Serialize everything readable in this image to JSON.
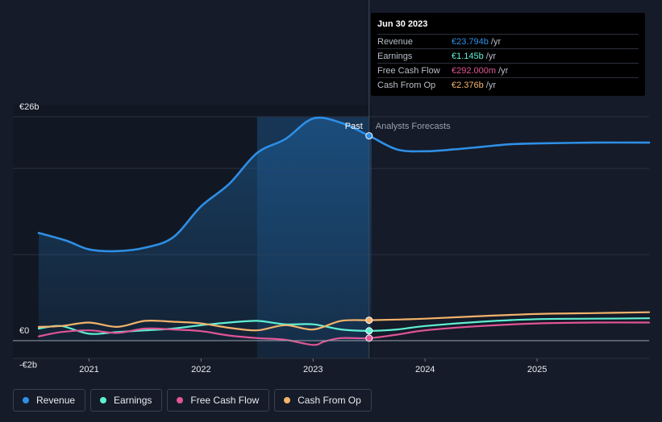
{
  "tooltip": {
    "date": "Jun 30 2023",
    "rows": [
      {
        "label": "Revenue",
        "value": "€23.794b",
        "unit": "/yr",
        "color": "#2e8fe6"
      },
      {
        "label": "Earnings",
        "value": "€1.145b",
        "unit": "/yr",
        "color": "#5ff0d4"
      },
      {
        "label": "Free Cash Flow",
        "value": "€292.000m",
        "unit": "/yr",
        "color": "#e05597"
      },
      {
        "label": "Cash From Op",
        "value": "€2.376b",
        "unit": "/yr",
        "color": "#f2b36b"
      }
    ]
  },
  "legend": [
    {
      "label": "Revenue",
      "color": "#2e8fe6"
    },
    {
      "label": "Earnings",
      "color": "#5ff0d4"
    },
    {
      "label": "Free Cash Flow",
      "color": "#e05597"
    },
    {
      "label": "Cash From Op",
      "color": "#f2b36b"
    }
  ],
  "chart_data": {
    "type": "line",
    "title": "",
    "xlabel": "",
    "ylabel": "",
    "x_ticks": [
      2021,
      2022,
      2023,
      2024,
      2025
    ],
    "x_range": [
      2020.55,
      2026.0
    ],
    "ylim": [
      -2,
      26
    ],
    "y_tick_labels": [
      "€26b",
      "€0",
      "-€2b"
    ],
    "y_tick_values": [
      26,
      0,
      -2
    ],
    "gridlines": [
      26,
      20,
      10,
      0
    ],
    "past_label": "Past",
    "forecast_label": "Analysts Forecasts",
    "past_end": 2023.5,
    "highlight_start": 2022.5,
    "series": [
      {
        "name": "Revenue",
        "color": "#2e8fe6",
        "x": [
          2020.55,
          2020.8,
          2021.0,
          2021.25,
          2021.5,
          2021.75,
          2022.0,
          2022.25,
          2022.5,
          2022.75,
          2023.0,
          2023.25,
          2023.5,
          2023.75,
          2024.0,
          2024.25,
          2024.5,
          2024.75,
          2025.0,
          2025.5,
          2026.0
        ],
        "y": [
          12.5,
          11.6,
          10.6,
          10.4,
          10.8,
          12.0,
          15.6,
          18.2,
          21.8,
          23.4,
          25.8,
          25.3,
          23.794,
          22.2,
          22.0,
          22.2,
          22.5,
          22.8,
          22.9,
          23.0,
          23.0
        ]
      },
      {
        "name": "Earnings",
        "color": "#5ff0d4",
        "x": [
          2020.55,
          2020.75,
          2021.0,
          2021.25,
          2021.5,
          2021.75,
          2022.0,
          2022.25,
          2022.5,
          2022.75,
          2023.0,
          2023.25,
          2023.5,
          2023.75,
          2024.0,
          2024.5,
          2025.0,
          2025.5,
          2026.0
        ],
        "y": [
          1.4,
          1.7,
          0.8,
          1.0,
          1.2,
          1.4,
          1.8,
          2.1,
          2.3,
          1.9,
          1.9,
          1.3,
          1.145,
          1.3,
          1.7,
          2.2,
          2.5,
          2.55,
          2.6
        ]
      },
      {
        "name": "Free Cash Flow",
        "color": "#e05597",
        "x": [
          2020.55,
          2020.75,
          2021.0,
          2021.25,
          2021.5,
          2021.75,
          2022.0,
          2022.25,
          2022.5,
          2022.75,
          2023.0,
          2023.1,
          2023.25,
          2023.5,
          2023.75,
          2024.0,
          2024.5,
          2025.0,
          2025.5,
          2026.0
        ],
        "y": [
          0.5,
          1.0,
          1.2,
          0.9,
          1.4,
          1.3,
          1.1,
          0.6,
          0.3,
          0.1,
          -0.5,
          -0.1,
          0.3,
          0.292,
          0.7,
          1.2,
          1.7,
          2.0,
          2.1,
          2.1
        ]
      },
      {
        "name": "Cash From Op",
        "color": "#f2b36b",
        "x": [
          2020.55,
          2020.75,
          2021.0,
          2021.25,
          2021.5,
          2021.75,
          2022.0,
          2022.25,
          2022.5,
          2022.75,
          2023.0,
          2023.25,
          2023.5,
          2023.75,
          2024.0,
          2024.5,
          2025.0,
          2025.5,
          2026.0
        ],
        "y": [
          1.6,
          1.7,
          2.1,
          1.6,
          2.3,
          2.2,
          2.0,
          1.5,
          1.2,
          1.8,
          1.3,
          2.3,
          2.376,
          2.45,
          2.55,
          2.85,
          3.1,
          3.2,
          3.3
        ]
      }
    ]
  }
}
